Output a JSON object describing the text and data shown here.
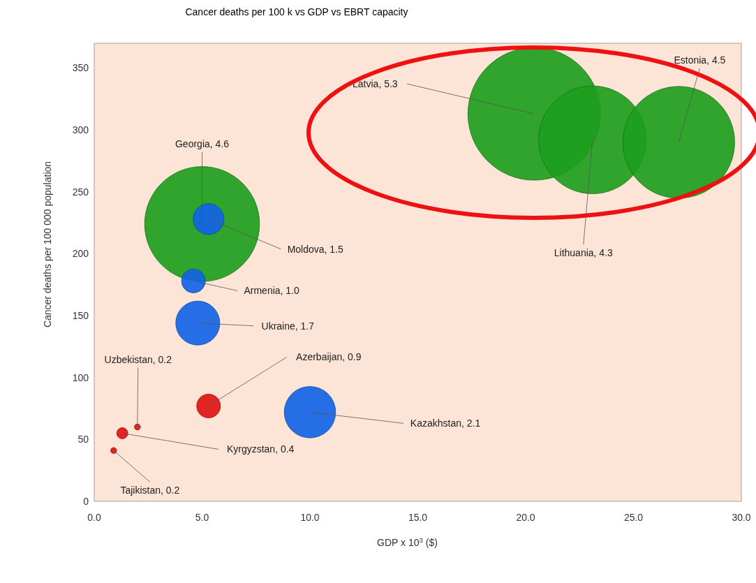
{
  "chart_data": {
    "type": "bubble",
    "title": "Cancer deaths per 100 k  vs  GDP  vs  EBRT capacity",
    "xlabel": "GDP x 10$^{3}$ ($)",
    "ylabel": "Cancer deaths per 100 000  population",
    "x": [
      20.4,
      23.1,
      27.1,
      5.0,
      5.3,
      4.6,
      4.8,
      5.3,
      10.0,
      2.0,
      1.3,
      0.9
    ],
    "values": [
      313,
      292,
      290,
      224,
      228,
      178,
      144,
      77,
      72,
      60,
      55,
      41
    ],
    "sizes": [
      1,
      0.66,
      0.71,
      0.75,
      0.054,
      0.032,
      0.11,
      0.032,
      0.15,
      0.002,
      0.007,
      0.002
    ],
    "colors": [
      "#1e9e1e",
      "#1e9e1e",
      "#1e9e1e",
      "#1e9e1e",
      "#1464e6",
      "#1464e6",
      "#1464e6",
      "#e01414",
      "#1464e6",
      "#e01414",
      "#e01414",
      "#e01414"
    ],
    "xlim": [
      0,
      30
    ],
    "ylim": [
      0,
      370
    ],
    "xticks": [
      {
        "value": 0,
        "label": "0.0"
      },
      {
        "value": 5,
        "label": "5.0"
      },
      {
        "value": 10,
        "label": "10.0"
      },
      {
        "value": 15,
        "label": "15.0"
      },
      {
        "value": 20,
        "label": "20.0"
      },
      {
        "value": 25,
        "label": "25.0"
      },
      {
        "value": 30,
        "label": "30.0"
      }
    ],
    "yticks": [
      0,
      50,
      100,
      150,
      200,
      250,
      300,
      350
    ],
    "grid": false,
    "annotations": [
      {
        "text": "Latvia, 5.3",
        "x": 20.4,
        "y": 313
      },
      {
        "text": "Lithuania, 4.3",
        "x": 23.1,
        "y": 292
      },
      {
        "text": "Estonia, 4.5",
        "x": 27.1,
        "y": 290
      },
      {
        "text": "Georgia, 4.6",
        "x": 5.0,
        "y": 224
      },
      {
        "text": "Moldova, 1.5",
        "x": 5.3,
        "y": 228
      },
      {
        "text": "Armenia, 1.0",
        "x": 4.6,
        "y": 178
      },
      {
        "text": "Ukraine, 1.7",
        "x": 4.8,
        "y": 144
      },
      {
        "text": "Azerbaijan, 0.9",
        "x": 5.3,
        "y": 77
      },
      {
        "text": "Kazakhstan, 2.1",
        "x": 10.0,
        "y": 72
      },
      {
        "text": "Uzbekistan, 0.2",
        "x": 2.0,
        "y": 60
      },
      {
        "text": "Kyrgyzstan, 0.4",
        "x": 1.3,
        "y": 55
      },
      {
        "text": "Tajikistan, 0.2",
        "x": 0.9,
        "y": 41
      }
    ]
  }
}
